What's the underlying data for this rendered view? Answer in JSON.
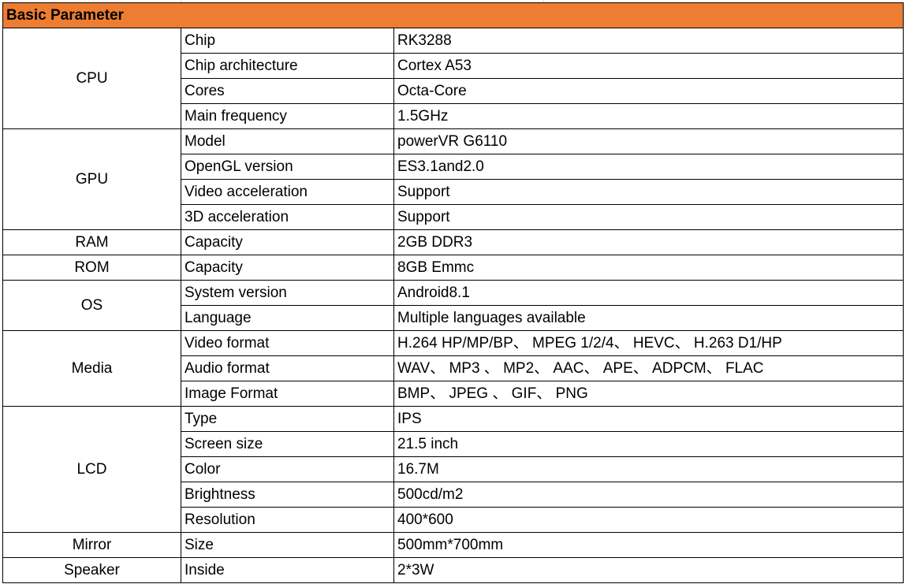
{
  "header": {
    "title": "Basic Parameter",
    "background_color": "#ED7D31"
  },
  "groups": [
    {
      "name": "CPU",
      "rows": [
        [
          "Chip",
          "RK3288"
        ],
        [
          "Chip architecture",
          "Cortex A53"
        ],
        [
          "Cores",
          "Octa-Core"
        ],
        [
          "Main frequency",
          "1.5GHz"
        ]
      ]
    },
    {
      "name": "GPU",
      "rows": [
        [
          "Model",
          "powerVR G6110"
        ],
        [
          "OpenGL version",
          "ES3.1and2.0"
        ],
        [
          "Video acceleration",
          "Support"
        ],
        [
          "3D acceleration",
          "Support"
        ]
      ]
    },
    {
      "name": "RAM",
      "rows": [
        [
          "Capacity",
          "2GB DDR3"
        ]
      ]
    },
    {
      "name": "ROM",
      "rows": [
        [
          "Capacity",
          "8GB Emmc"
        ]
      ]
    },
    {
      "name": "OS",
      "rows": [
        [
          "System version",
          "Android8.1"
        ],
        [
          "Language",
          "Multiple languages available"
        ]
      ]
    },
    {
      "name": "Media",
      "rows": [
        [
          "Video format",
          "H.264 HP/MP/BP、 MPEG 1/2/4、 HEVC、 H.263 D1/HP"
        ],
        [
          "Audio format",
          "WAV、 MP3 、 MP2、 AAC、 APE、 ADPCM、 FLAC"
        ],
        [
          "Image Format",
          "BMP、 JPEG 、 GIF、 PNG"
        ]
      ]
    },
    {
      "name": "LCD",
      "rows": [
        [
          "Type",
          "IPS"
        ],
        [
          "Screen size",
          "21.5 inch"
        ],
        [
          "Color",
          "16.7M"
        ],
        [
          "Brightness",
          "500cd/m2"
        ],
        [
          "Resolution",
          "400*600"
        ]
      ]
    },
    {
      "name": "Mirror",
      "rows": [
        [
          "Size",
          "500mm*700mm"
        ]
      ]
    },
    {
      "name": "Speaker",
      "rows": [
        [
          "Inside",
          "2*3W"
        ]
      ]
    }
  ]
}
